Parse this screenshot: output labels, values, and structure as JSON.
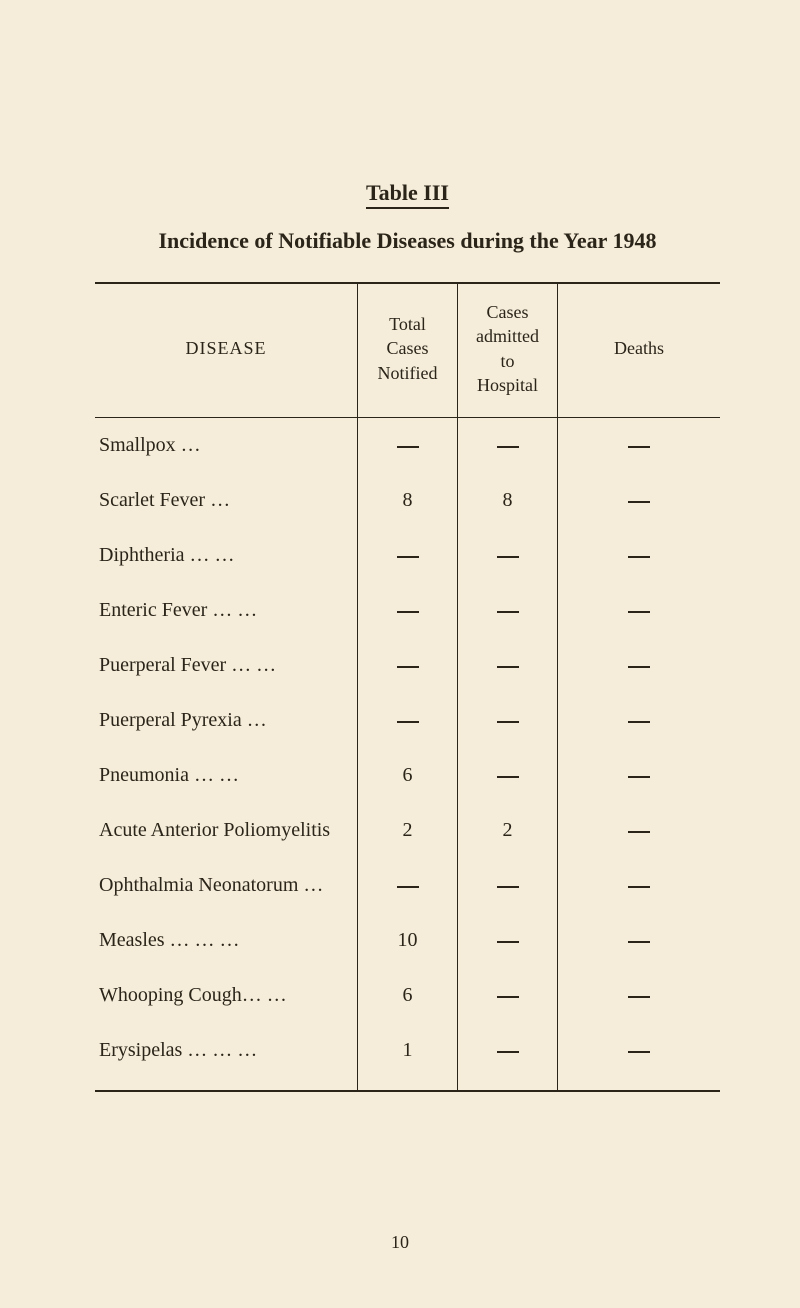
{
  "tableLabel": "Table III",
  "subtitle": "Incidence of Notifiable Diseases during the Year 1948",
  "headers": {
    "disease": "DISEASE",
    "totalLine1": "Total",
    "totalLine2": "Cases",
    "totalLine3": "Notified",
    "admittedLine1": "Cases",
    "admittedLine2": "admitted",
    "admittedLine3": "to",
    "admittedLine4": "Hospital",
    "deaths": "Deaths"
  },
  "rows": [
    {
      "disease": "Smallpox …",
      "total": "—",
      "admitted": "—",
      "deaths": "—"
    },
    {
      "disease": "Scarlet Fever       …",
      "total": "8",
      "admitted": "8",
      "deaths": "—"
    },
    {
      "disease": "Diphtheria        …    …",
      "total": "—",
      "admitted": "—",
      "deaths": "—"
    },
    {
      "disease": "Enteric Fever      …    …",
      "total": "—",
      "admitted": "—",
      "deaths": "—"
    },
    {
      "disease": "Puerperal Fever   …    …",
      "total": "—",
      "admitted": "—",
      "deaths": "—"
    },
    {
      "disease": "Puerperal Pyrexia …",
      "total": "—",
      "admitted": "—",
      "deaths": "—"
    },
    {
      "disease": "Pneumonia         …    …",
      "total": "6",
      "admitted": "—",
      "deaths": "—"
    },
    {
      "disease": "Acute Anterior Poliomyelitis",
      "total": "2",
      "admitted": "2",
      "deaths": "—"
    },
    {
      "disease": "Ophthalmia Neonatorum …",
      "total": "—",
      "admitted": "—",
      "deaths": "—"
    },
    {
      "disease": "Measles     …    …    …",
      "total": "10",
      "admitted": "—",
      "deaths": "—"
    },
    {
      "disease": "Whooping Cough…    …",
      "total": "6",
      "admitted": "—",
      "deaths": "—"
    },
    {
      "disease": "Erysipelas …    …    …",
      "total": "1",
      "admitted": "—",
      "deaths": "—"
    }
  ],
  "pageNumber": "10"
}
